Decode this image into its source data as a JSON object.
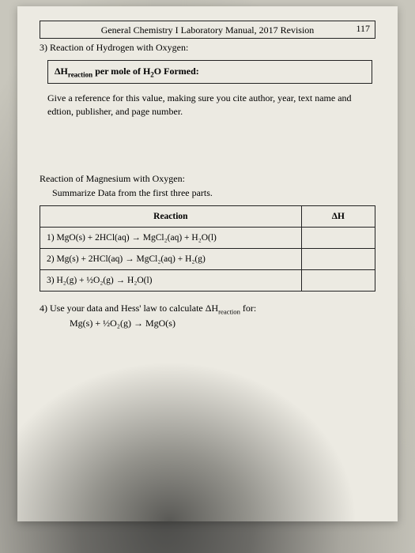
{
  "header": {
    "page_number": "117",
    "title": "General Chemistry I Laboratory Manual, 2017 Revision"
  },
  "q3": {
    "prompt": "3) Reaction of Hydrogen with Oxygen:",
    "dh_label_prefix": "ΔH",
    "dh_label_sub": "reaction",
    "dh_label_suffix": " per mole of H",
    "dh_label_sub2": "2",
    "dh_label_end": "O Formed:",
    "reference_text": "Give a reference for this value, making sure you cite author, year, text name and edtion, publisher, and page number."
  },
  "section_mg": {
    "title": "Reaction of Magnesium with Oxygen:",
    "subtitle": "Summarize Data from the first three parts.",
    "col_reaction": "Reaction",
    "col_dh": "ΔH",
    "rows": [
      "1) MgO(s) + 2HCl(aq) → MgCl₂(aq) + H₂O(l)",
      "2) Mg(s) + 2HCl(aq) → MgCl₂(aq) + H₂(g)",
      "3) H₂(g) + ½O₂(g) → H₂O(l)"
    ]
  },
  "q4": {
    "prompt_a": "4) Use your data and Hess' law to calculate ΔH",
    "prompt_sub": "reaction",
    "prompt_b": " for:",
    "equation": "Mg(s) + ½O₂(g) → MgO(s)"
  }
}
